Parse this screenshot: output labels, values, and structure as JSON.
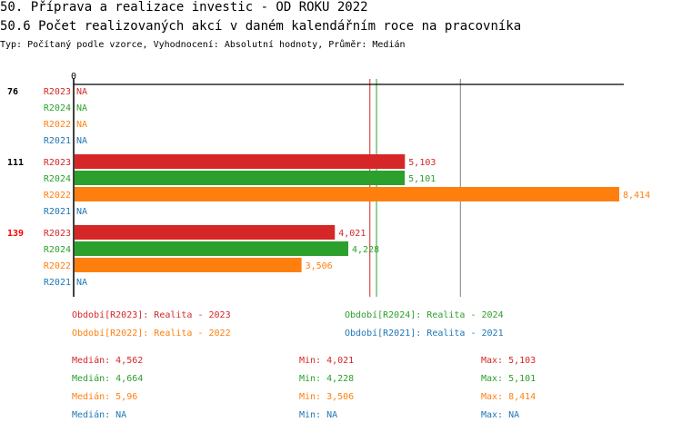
{
  "header": {
    "title": "50. Příprava a realizace investic - OD ROKU 2022",
    "subtitle": "50.6 Počet realizovaných akcí v daném kalendářním roce na pracovníka",
    "info": "Typ: Počítaný podle vzorce, Vyhodnocení: Absolutní hodnoty, Průměr: Medián"
  },
  "chart_data": {
    "type": "bar",
    "orientation": "horizontal",
    "xlim": [
      0,
      8414
    ],
    "x_tick_labels": [
      "0"
    ],
    "groups": [
      {
        "label": "76",
        "label_color": "#000000"
      },
      {
        "label": "111",
        "label_color": "#000000"
      },
      {
        "label": "139",
        "label_color": "#ff0000"
      }
    ],
    "series": [
      {
        "name": "R2023",
        "color": "#d62728",
        "values": [
          null,
          5.103,
          4.021
        ],
        "labels": [
          "NA",
          "5,103",
          "4,021"
        ]
      },
      {
        "name": "R2024",
        "color": "#2ca02c",
        "values": [
          null,
          5.101,
          4.228
        ],
        "labels": [
          "NA",
          "5,101",
          "4,228"
        ]
      },
      {
        "name": "R2022",
        "color": "#ff7f0e",
        "values": [
          null,
          8.414,
          3.506
        ],
        "labels": [
          "NA",
          "8,414",
          "3,506"
        ]
      },
      {
        "name": "R2021",
        "color": "#1f77b4",
        "values": [
          null,
          null,
          null
        ],
        "labels": [
          "NA",
          "NA",
          "NA"
        ]
      }
    ],
    "median_lines": [
      {
        "series": "R2023",
        "value": 4.562,
        "color": "#d62728"
      },
      {
        "series": "R2024",
        "value": 4.664,
        "color": "#2ca02c"
      },
      {
        "series": "R2022",
        "value": 5.96,
        "color": "#808080"
      }
    ],
    "scale_max": 8.414
  },
  "legend": [
    {
      "text": "Období[R2023]: Realita - 2023",
      "color": "#d62728"
    },
    {
      "text": "Období[R2024]: Realita - 2024",
      "color": "#2ca02c"
    },
    {
      "text": "Období[R2022]: Realita - 2022",
      "color": "#ff7f0e"
    },
    {
      "text": "Období[R2021]: Realita - 2021",
      "color": "#1f77b4"
    }
  ],
  "stats": [
    {
      "median": "Medián: 4,562",
      "min": "Min: 4,021",
      "max": "Max: 5,103",
      "color": "#d62728"
    },
    {
      "median": "Medián: 4,664",
      "min": "Min: 4,228",
      "max": "Max: 5,101",
      "color": "#2ca02c"
    },
    {
      "median": "Medián: 5,96",
      "min": "Min: 3,506",
      "max": "Max: 8,414",
      "color": "#ff7f0e"
    },
    {
      "median": "Medián: NA",
      "min": "Min: NA",
      "max": "Max: NA",
      "color": "#1f77b4"
    }
  ]
}
